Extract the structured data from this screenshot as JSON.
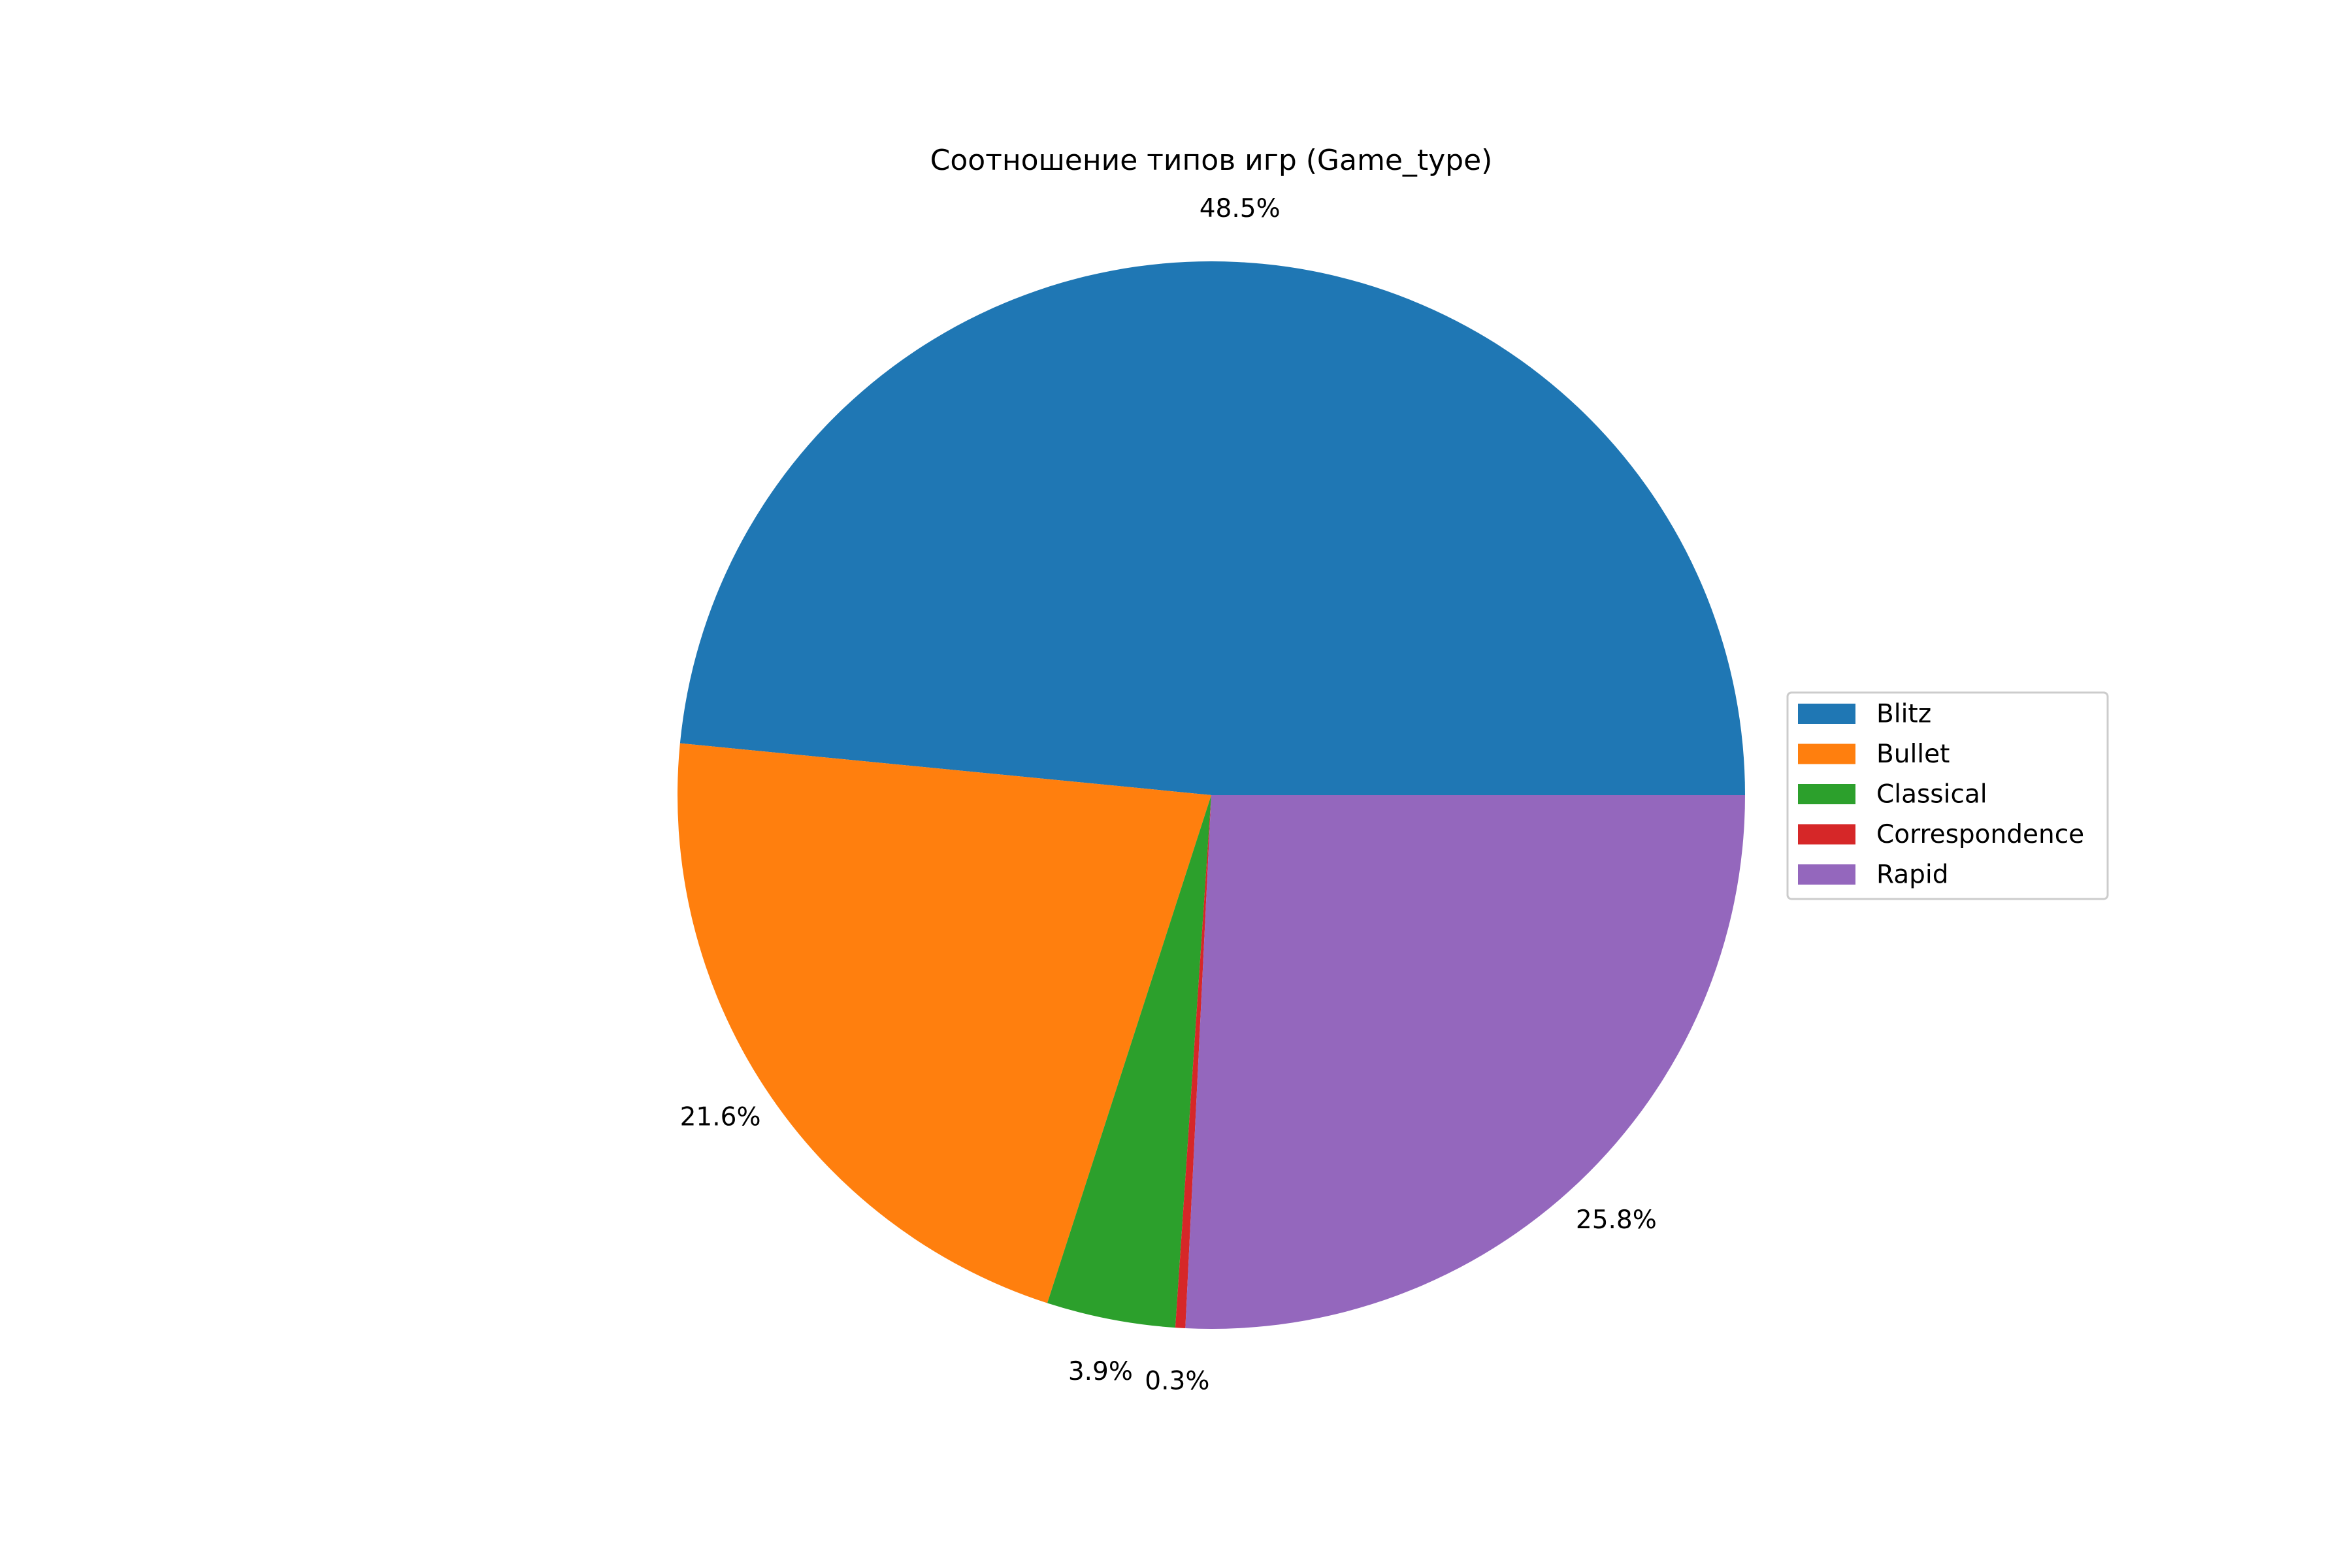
{
  "chart_data": {
    "type": "pie",
    "title": "Соотношение типов игр (Game_type)",
    "categories": [
      "Blitz",
      "Bullet",
      "Classical",
      "Correspondence",
      "Rapid"
    ],
    "values": [
      48.5,
      21.6,
      3.9,
      0.3,
      25.8
    ],
    "labels": [
      "48.5%",
      "21.6%",
      "3.9%",
      "0.3%",
      "25.8%"
    ],
    "colors": [
      "#1f77b4",
      "#ff7f0e",
      "#2ca02c",
      "#d62728",
      "#9467bd"
    ],
    "start_angle_deg": 0,
    "direction": "counterclockwise",
    "legend_position": "center-right"
  }
}
